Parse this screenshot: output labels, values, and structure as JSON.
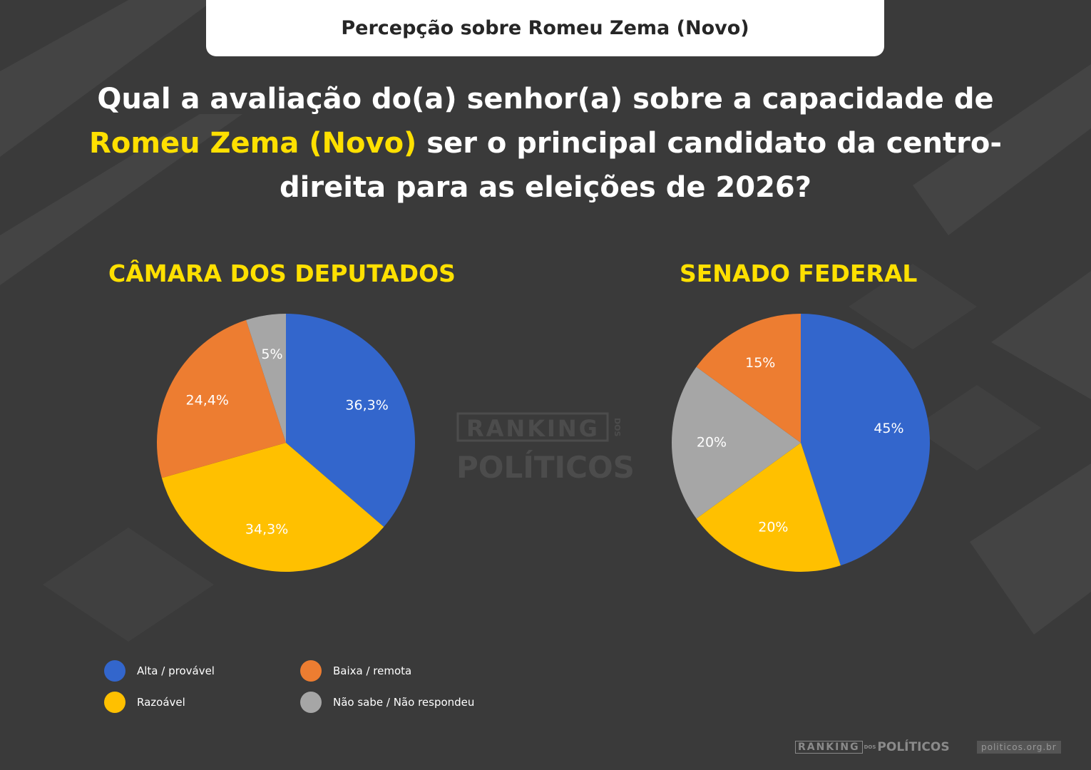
{
  "banner": {
    "title": "Percepção sobre Romeu Zema (Novo)"
  },
  "question": {
    "part1": "Qual a avaliação do(a) senhor(a) sobre a capacidade de",
    "highlight": "Romeu Zema (Novo)",
    "part2": "ser o principal candidato da centro-direita para as eleições de 2026?"
  },
  "colors": {
    "alta": "#3366cc",
    "razoavel": "#ffc000",
    "baixa": "#ed7d31",
    "nao_sabe": "#a6a6a6",
    "highlight": "#ffe000"
  },
  "chart_data": [
    {
      "type": "pie",
      "title": "CÂMARA DOS DEPUTADOS",
      "categories": [
        "Alta / provável",
        "Razoável",
        "Baixa / remota",
        "Não sabe / Não respondeu"
      ],
      "values": [
        36.3,
        34.3,
        24.4,
        5
      ],
      "labels": [
        "36,3%",
        "34,3%",
        "24,4%",
        "5%"
      ],
      "colors": [
        "#3366cc",
        "#ffc000",
        "#ed7d31",
        "#a6a6a6"
      ]
    },
    {
      "type": "pie",
      "title": "SENADO FEDERAL",
      "categories": [
        "Alta / provável",
        "Razoável",
        "Não sabe / Não respondeu",
        "Baixa / remota"
      ],
      "values": [
        45,
        20,
        20,
        15
      ],
      "labels": [
        "45%",
        "20%",
        "20%",
        "15%"
      ],
      "colors": [
        "#3366cc",
        "#ffc000",
        "#a6a6a6",
        "#ed7d31"
      ]
    }
  ],
  "legend": [
    {
      "label": "Alta / provável",
      "color": "#3366cc"
    },
    {
      "label": "Baixa / remota",
      "color": "#ed7d31"
    },
    {
      "label": "Razoável",
      "color": "#ffc000"
    },
    {
      "label": "Não sabe / Não respondeu",
      "color": "#a6a6a6"
    }
  ],
  "watermark": {
    "line1": "RANKING",
    "dos": "DOS",
    "line2": "POLÍTICOS"
  },
  "footer": {
    "logo_ranking": "RANKING",
    "logo_dos": "DOS",
    "logo_politicos": "POLÍTICOS",
    "url": "politicos.org.br"
  }
}
